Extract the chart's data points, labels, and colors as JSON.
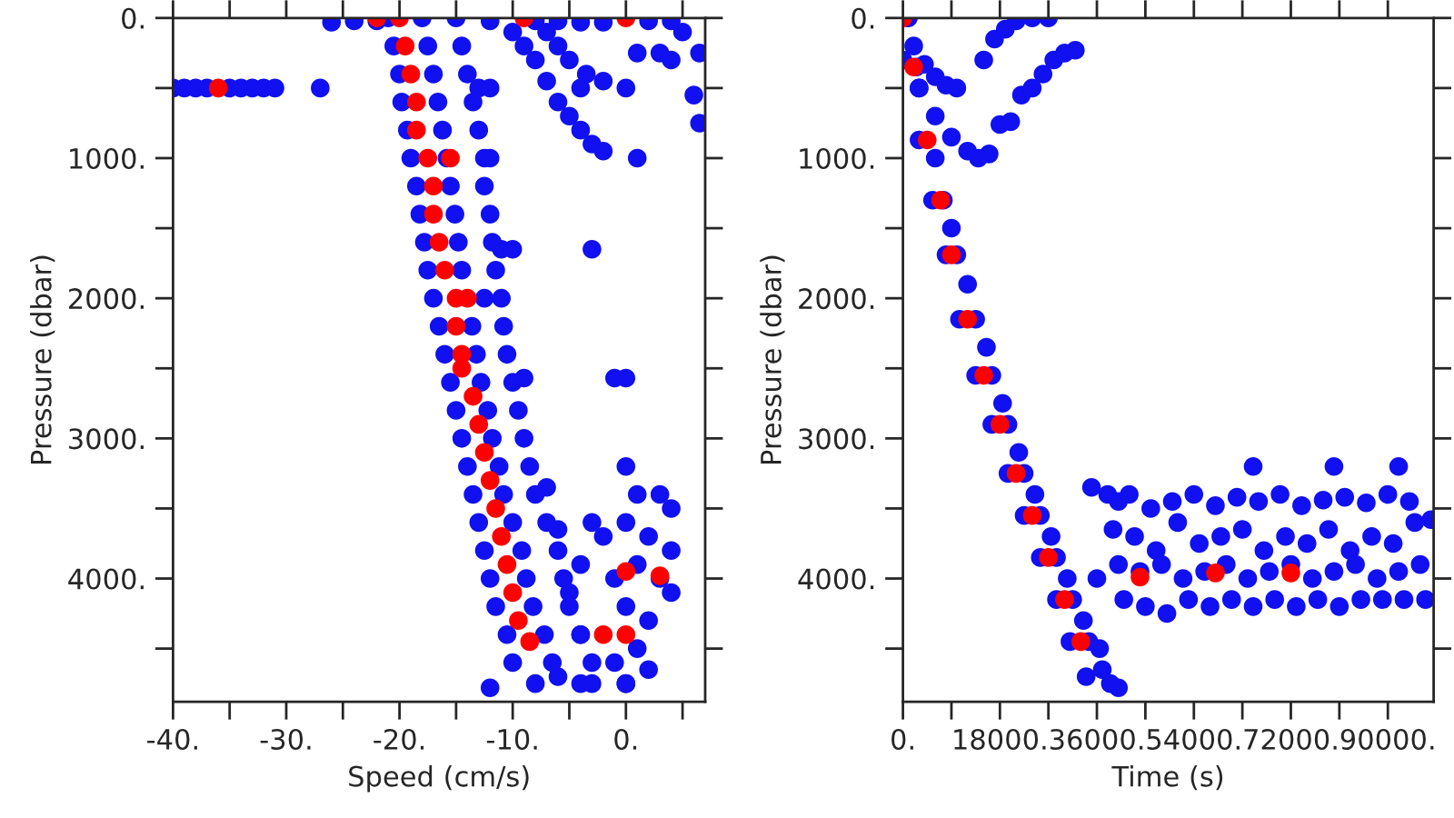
{
  "chart_data": [
    {
      "type": "scatter",
      "xlabel": "Speed (cm/s)",
      "ylabel": "Pressure (dbar)",
      "xlim": [
        -40,
        7
      ],
      "ylim": [
        4880,
        0
      ],
      "grid": false,
      "marker": "circle",
      "xticks": [
        {
          "value": -40,
          "label": "-40."
        },
        {
          "value": -35,
          "label": null
        },
        {
          "value": -30,
          "label": "-30."
        },
        {
          "value": -25,
          "label": null
        },
        {
          "value": -20,
          "label": "-20."
        },
        {
          "value": -15,
          "label": null
        },
        {
          "value": -10,
          "label": "-10."
        },
        {
          "value": -5,
          "label": null
        },
        {
          "value": 0,
          "label": "0."
        },
        {
          "value": 5,
          "label": null
        }
      ],
      "yticks": [
        {
          "value": 0,
          "label": "0."
        },
        {
          "value": 500,
          "label": null
        },
        {
          "value": 1000,
          "label": "1000."
        },
        {
          "value": 1500,
          "label": null
        },
        {
          "value": 2000,
          "label": "2000."
        },
        {
          "value": 2500,
          "label": null
        },
        {
          "value": 3000,
          "label": "3000."
        },
        {
          "value": 3500,
          "label": null
        },
        {
          "value": 4000,
          "label": "4000."
        },
        {
          "value": 4500,
          "label": null
        }
      ],
      "series": [
        {
          "color": "#1010f0",
          "x": [
            -21,
            -18,
            -15,
            -20.5,
            -17.5,
            -14.5,
            -20,
            -17,
            -14,
            -19.8,
            -16.6,
            -13.5,
            -19.3,
            -16.2,
            -13,
            -19,
            -15.8,
            -12.5,
            -18.5,
            -15.5,
            -12.5,
            -18.2,
            -15.1,
            -12,
            -17.8,
            -14.8,
            -11.8,
            -17.5,
            -14.5,
            -11.5,
            -17,
            -12.5,
            -11,
            -16.5,
            -13.6,
            -10.8,
            -16,
            -13.2,
            -10.5,
            -15.5,
            -12.8,
            -10,
            -15,
            -12.2,
            -9.5,
            -14.5,
            -11.8,
            -9,
            -14,
            -11.2,
            -8.5,
            -13.5,
            -10.8,
            -8,
            -13,
            -10,
            -7,
            -12.5,
            -9.2,
            -6,
            -12,
            -8.8,
            -5.5,
            -11.5,
            -8.2,
            -5,
            -10.5,
            -7.2,
            -4,
            -10,
            -6.5,
            -3,
            -8,
            -4,
            0,
            -26,
            -24,
            -22,
            -12,
            -8,
            -6,
            -4,
            -2,
            2,
            4,
            -40,
            -39,
            -38,
            -37,
            -35,
            -34,
            -33,
            -32,
            -31,
            -27,
            -10,
            -9,
            -8,
            -7,
            -6,
            -5,
            -4,
            -3,
            -2,
            -7,
            -6,
            -5,
            -3.5,
            -2,
            0,
            1,
            3,
            4,
            5,
            6.5,
            6,
            6.5,
            1,
            -4,
            -13,
            -12,
            -12,
            -11,
            -10,
            -3,
            -9,
            -1,
            0,
            0,
            1,
            3,
            4,
            0,
            2,
            4,
            1,
            3,
            4,
            0,
            2,
            -1,
            -2,
            -3,
            -4,
            -5,
            -4,
            -1,
            0,
            -3,
            -6,
            1,
            2,
            -7,
            -6,
            -12
          ],
          "values": [
            0,
            0,
            0,
            200,
            200,
            200,
            400,
            400,
            400,
            600,
            600,
            600,
            800,
            800,
            800,
            1000,
            1000,
            1000,
            1200,
            1200,
            1200,
            1400,
            1400,
            1400,
            1600,
            1600,
            1600,
            1800,
            1800,
            1800,
            2000,
            2000,
            2000,
            2200,
            2200,
            2200,
            2400,
            2400,
            2400,
            2600,
            2600,
            2600,
            2800,
            2800,
            2800,
            3000,
            3000,
            3000,
            3200,
            3200,
            3200,
            3400,
            3400,
            3400,
            3600,
            3600,
            3600,
            3800,
            3800,
            3800,
            4000,
            4000,
            4000,
            4200,
            4200,
            4200,
            4400,
            4400,
            4400,
            4600,
            4600,
            4600,
            4750,
            4750,
            4750,
            30,
            20,
            20,
            20,
            20,
            20,
            30,
            30,
            20,
            20,
            500,
            500,
            500,
            500,
            500,
            500,
            500,
            500,
            500,
            500,
            100,
            200,
            300,
            450,
            600,
            700,
            800,
            900,
            950,
            100,
            200,
            300,
            400,
            450,
            500,
            250,
            250,
            300,
            100,
            250,
            550,
            750,
            1000,
            500,
            500,
            500,
            1000,
            1650,
            1650,
            1650,
            2570,
            2570,
            2570,
            3200,
            3400,
            3400,
            3500,
            3600,
            3700,
            3800,
            3900,
            4000,
            4100,
            4200,
            4300,
            4000,
            3700,
            3600,
            3900,
            4100,
            4400,
            4600,
            4750,
            4750,
            4700,
            4500,
            4650,
            3350,
            3650,
            4780
          ]
        },
        {
          "color": "#ff0000",
          "x": [
            -20,
            -19.5,
            -19,
            -18.5,
            -18.5,
            -17.5,
            -17,
            -17,
            -16.5,
            -16,
            -15,
            -15,
            -14.5,
            -14.5,
            -13.5,
            -13,
            -12.5,
            -12,
            -11.5,
            -11,
            -10.5,
            -10,
            -9.5,
            -8.5,
            -36,
            -22,
            -9,
            0,
            -15.5,
            -14,
            -2,
            0,
            0,
            3
          ],
          "values": [
            0,
            200,
            400,
            600,
            800,
            1000,
            1200,
            1400,
            1600,
            1800,
            2000,
            2200,
            2400,
            2500,
            2700,
            2900,
            3100,
            3300,
            3500,
            3700,
            3900,
            4100,
            4300,
            4450,
            500,
            0,
            0,
            0,
            1000,
            2000,
            4400,
            4400,
            3950,
            3980
          ]
        }
      ]
    },
    {
      "type": "scatter",
      "xlabel": "Time (s)",
      "ylabel": "Pressure (dbar)",
      "xlim": [
        0,
        98500
      ],
      "ylim": [
        4880,
        0
      ],
      "grid": false,
      "marker": "circle",
      "xticks": [
        {
          "value": 0,
          "label": "0."
        },
        {
          "value": 9000,
          "label": null
        },
        {
          "value": 18000,
          "label": "18000."
        },
        {
          "value": 27000,
          "label": null
        },
        {
          "value": 36000,
          "label": "36000."
        },
        {
          "value": 45000,
          "label": null
        },
        {
          "value": 54000,
          "label": "54000."
        },
        {
          "value": 63000,
          "label": null
        },
        {
          "value": 72000,
          "label": "72000."
        },
        {
          "value": 81000,
          "label": null
        },
        {
          "value": 90000,
          "label": "90000."
        }
      ],
      "yticks": [
        {
          "value": 0,
          "label": "0."
        },
        {
          "value": 500,
          "label": null
        },
        {
          "value": 1000,
          "label": "1000."
        },
        {
          "value": 1500,
          "label": null
        },
        {
          "value": 2000,
          "label": "2000."
        },
        {
          "value": 2500,
          "label": null
        },
        {
          "value": 3000,
          "label": "3000."
        },
        {
          "value": 3500,
          "label": null
        },
        {
          "value": 4000,
          "label": "4000."
        },
        {
          "value": 4500,
          "label": null
        }
      ],
      "series": [
        {
          "color": "#1010f0",
          "x": [
            0,
            1000,
            2500,
            3000,
            3000,
            6000,
            5500,
            7500,
            9000,
            8000,
            10000,
            12000,
            10500,
            13500,
            15500,
            13500,
            16500,
            18500,
            16500,
            19500,
            21500,
            19500,
            22500,
            24500,
            22500,
            25500,
            27500,
            25500,
            28500,
            30500,
            28500,
            31500,
            33500,
            31000,
            34500,
            36500,
            34000,
            37000,
            38500,
            40000,
            36000,
            2000,
            4000,
            6000,
            8000,
            10000,
            3000,
            6000,
            9000,
            12000,
            14000,
            16000,
            15000,
            17000,
            19000,
            21000,
            24000,
            27000,
            18000,
            20000,
            22000,
            24000,
            26000,
            28000,
            30000,
            32000,
            35000,
            38000,
            40000,
            42000,
            46000,
            50000,
            54000,
            58000,
            62000,
            66000,
            70000,
            74000,
            78000,
            82000,
            86000,
            90000,
            94000,
            98000,
            39000,
            43000,
            47000,
            51000,
            55000,
            59000,
            63000,
            67000,
            71000,
            75000,
            79000,
            83000,
            87000,
            91000,
            95000,
            40000,
            44000,
            48000,
            52000,
            56000,
            60000,
            64000,
            68000,
            72000,
            76000,
            80000,
            84000,
            88000,
            92000,
            96000,
            41000,
            45000,
            49000,
            53000,
            57000,
            61000,
            65000,
            69000,
            73000,
            77000,
            81000,
            85000,
            89000,
            93000,
            97000,
            65000,
            80000,
            92000
          ],
          "values": [
            300,
            0,
            350,
            500,
            870,
            1000,
            1300,
            1300,
            1500,
            1690,
            1690,
            1900,
            2150,
            2150,
            2350,
            2550,
            2550,
            2750,
            2900,
            2900,
            3100,
            3250,
            3250,
            3400,
            3550,
            3550,
            3700,
            3850,
            3850,
            4000,
            4150,
            4150,
            4300,
            4450,
            4450,
            4500,
            4700,
            4650,
            4750,
            4780,
            4000,
            200,
            330,
            420,
            480,
            500,
            500,
            700,
            850,
            950,
            1000,
            970,
            300,
            150,
            80,
            20,
            0,
            0,
            760,
            740,
            550,
            500,
            400,
            300,
            250,
            230,
            3350,
            3400,
            3450,
            3400,
            3500,
            3450,
            3400,
            3480,
            3420,
            3450,
            3400,
            3480,
            3440,
            3420,
            3460,
            3400,
            3450,
            3580,
            3650,
            3700,
            3800,
            3600,
            3750,
            3700,
            3650,
            3800,
            3700,
            3750,
            3650,
            3800,
            3700,
            3750,
            3600,
            3900,
            3950,
            3900,
            4000,
            3950,
            3900,
            4000,
            3950,
            3900,
            4000,
            3950,
            3900,
            4000,
            3950,
            3900,
            4150,
            4200,
            4250,
            4150,
            4200,
            4150,
            4200,
            4150,
            4200,
            4150,
            4200,
            4150,
            4150,
            4150,
            4150,
            3200,
            3200,
            3200
          ]
        },
        {
          "color": "#ff0000",
          "x": [
            0,
            2000,
            4500,
            7000,
            9000,
            12000,
            15000,
            18000,
            21000,
            24000,
            27000,
            30000,
            33000,
            44000,
            58000,
            72000
          ],
          "values": [
            0,
            350,
            870,
            1300,
            1690,
            2150,
            2550,
            2900,
            3250,
            3550,
            3850,
            4150,
            4450,
            3990,
            3960,
            3960
          ]
        }
      ]
    }
  ]
}
